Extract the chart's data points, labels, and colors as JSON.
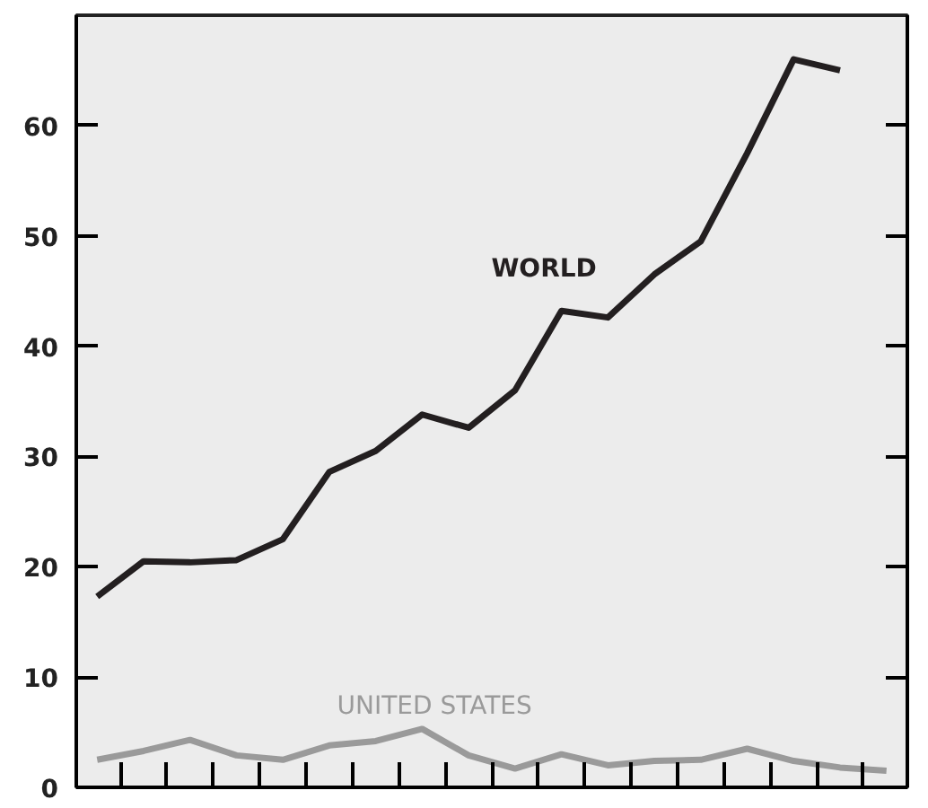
{
  "chart_data": {
    "type": "line",
    "categories": [
      null,
      null,
      null,
      null,
      null,
      null,
      null,
      null,
      null,
      null,
      null,
      null,
      null,
      null,
      null,
      null,
      null,
      null
    ],
    "series": [
      {
        "name": "WORLD",
        "color": "#231f20",
        "values": [
          17.3,
          20.5,
          20.4,
          20.6,
          22.5,
          28.6,
          30.5,
          33.8,
          32.6,
          36.0,
          43.2,
          42.6,
          46.5,
          49.5,
          57.5,
          66.0,
          65.0,
          null
        ]
      },
      {
        "name": "UNITED STATES",
        "color": "#9a9a9a",
        "values": [
          2.5,
          3.3,
          4.3,
          2.9,
          2.5,
          3.8,
          4.2,
          5.3,
          2.9,
          1.7,
          3.0,
          2.0,
          2.4,
          2.5,
          3.5,
          2.4,
          1.8,
          1.5
        ]
      }
    ],
    "ylim": [
      0,
      70
    ],
    "yticks": [
      0,
      10,
      20,
      30,
      40,
      50,
      60
    ],
    "grid": false,
    "tick_labels": "y",
    "marker": "none",
    "line_style": "solid"
  }
}
